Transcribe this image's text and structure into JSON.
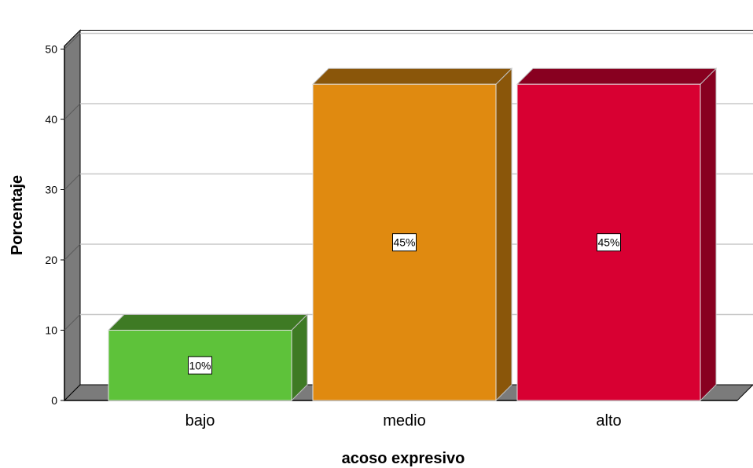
{
  "chart_data": {
    "type": "bar",
    "categories": [
      "bajo",
      "medio",
      "alto"
    ],
    "values": [
      10,
      45,
      45
    ],
    "data_labels": [
      "10%",
      "45%",
      "45%"
    ],
    "xlabel": "acoso expresivo",
    "ylabel": "Porcentaje",
    "ylim": [
      0,
      50
    ],
    "yticks": [
      "0",
      "10",
      "20",
      "30",
      "40",
      "50"
    ],
    "grid": true,
    "style": "3d",
    "colors": {
      "front": [
        "#5EC23A",
        "#E08A10",
        "#D80032"
      ],
      "top": [
        "#3E7A24",
        "#8A560A",
        "#880020"
      ],
      "side": [
        "#3E7A24",
        "#8A560A",
        "#880020"
      ],
      "wall": "#7B7B7B",
      "grid": "#C8C8C8"
    }
  }
}
